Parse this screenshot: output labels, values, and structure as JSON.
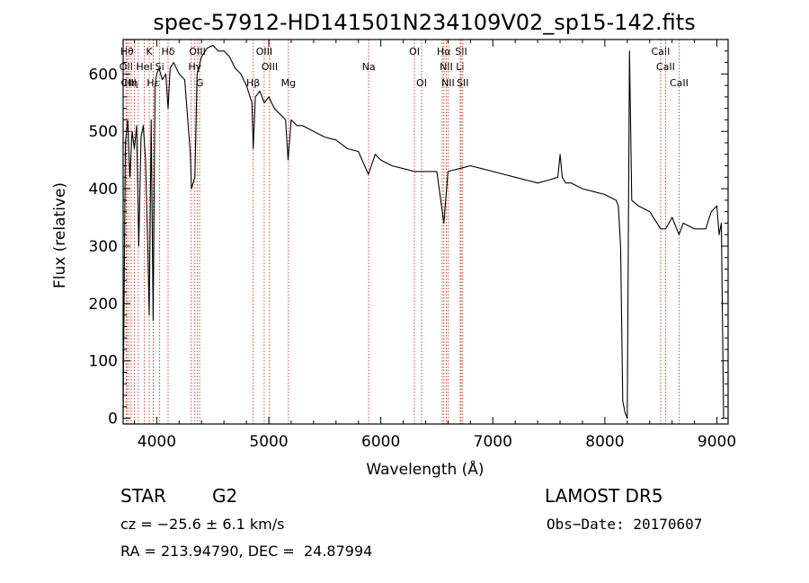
{
  "chart_data": {
    "type": "line",
    "title": "spec-57912-HD141501N234109V02_sp15-142.fits",
    "xlabel": "Wavelength (Å)",
    "ylabel": "Flux (relative)",
    "xlim": [
      3700,
      9100
    ],
    "ylim": [
      -10,
      660
    ],
    "x_ticks": [
      4000,
      5000,
      6000,
      7000,
      8000,
      9000
    ],
    "y_ticks": [
      0,
      100,
      200,
      300,
      400,
      500,
      600
    ],
    "grid": false,
    "series": [
      {
        "x": [
          3700,
          3720,
          3740,
          3760,
          3780,
          3800,
          3820,
          3840,
          3860,
          3880,
          3900,
          3920,
          3933,
          3950,
          3968,
          3985,
          4000,
          4020,
          4050,
          4080,
          4101,
          4120,
          4150,
          4200,
          4250,
          4300,
          4310,
          4340,
          4360,
          4400,
          4450,
          4500,
          4550,
          4600,
          4650,
          4700,
          4750,
          4800,
          4850,
          4861,
          4880,
          4920,
          4960,
          5000,
          5050,
          5100,
          5150,
          5172,
          5200,
          5250,
          5300,
          5400,
          5500,
          5600,
          5700,
          5800,
          5890,
          5950,
          6000,
          6100,
          6200,
          6300,
          6400,
          6500,
          6563,
          6600,
          6700,
          6800,
          6900,
          7000,
          7100,
          7200,
          7300,
          7400,
          7500,
          7580,
          7600,
          7620,
          7650,
          7700,
          7800,
          7900,
          8000,
          8050,
          8100,
          8120,
          8140,
          8160,
          8180,
          8200,
          8220,
          8240,
          8300,
          8400,
          8498,
          8542,
          8600,
          8662,
          8700,
          8800,
          8900,
          8950,
          9000,
          9020,
          9040,
          9060
        ],
        "y": [
          0,
          480,
          520,
          420,
          500,
          470,
          510,
          300,
          490,
          510,
          450,
          300,
          180,
          520,
          170,
          580,
          600,
          610,
          590,
          600,
          540,
          610,
          620,
          600,
          590,
          460,
          400,
          420,
          600,
          630,
          645,
          650,
          640,
          640,
          630,
          610,
          600,
          580,
          550,
          470,
          560,
          570,
          550,
          560,
          540,
          530,
          520,
          450,
          520,
          510,
          510,
          500,
          490,
          485,
          470,
          465,
          425,
          460,
          450,
          440,
          435,
          430,
          430,
          430,
          340,
          430,
          435,
          440,
          435,
          430,
          425,
          420,
          415,
          410,
          415,
          420,
          460,
          420,
          410,
          410,
          400,
          395,
          390,
          385,
          380,
          370,
          300,
          30,
          10,
          0,
          640,
          380,
          370,
          360,
          330,
          330,
          350,
          320,
          340,
          330,
          330,
          360,
          370,
          320,
          340,
          0
        ]
      }
    ],
    "lines": [
      {
        "x": 3734,
        "label": "Hθ",
        "row": 1
      },
      {
        "x": 3727,
        "label": "OII",
        "row": 2
      },
      {
        "x": 3750,
        "label": "CIII",
        "row": 3
      },
      {
        "x": 3771,
        "label": "Hη",
        "row": 3
      },
      {
        "x": 3800,
        "label": "",
        "row": 0
      },
      {
        "x": 3835,
        "label": "",
        "row": 0
      },
      {
        "x": 3889,
        "label": "HeI",
        "row": 2
      },
      {
        "x": 3933,
        "label": "K",
        "row": 1
      },
      {
        "x": 3968,
        "label": "Hε",
        "row": 3
      },
      {
        "x": 3970,
        "label": "",
        "row": 0
      },
      {
        "x": 4026,
        "label": "Si",
        "row": 2
      },
      {
        "x": 4101,
        "label": "Hδ",
        "row": 1
      },
      {
        "x": 4307,
        "label": "",
        "row": 0
      },
      {
        "x": 4340,
        "label": "Hγ",
        "row": 2
      },
      {
        "x": 4363,
        "label": "OIII",
        "row": 1
      },
      {
        "x": 4383,
        "label": "G",
        "row": 3
      },
      {
        "x": 4861,
        "label": "Hβ",
        "row": 3
      },
      {
        "x": 4959,
        "label": "OIII",
        "row": 1
      },
      {
        "x": 5007,
        "label": "OIII",
        "row": 2
      },
      {
        "x": 5175,
        "label": "Mg",
        "row": 3
      },
      {
        "x": 5892,
        "label": "Na",
        "row": 2
      },
      {
        "x": 6300,
        "label": "OI",
        "row": 1
      },
      {
        "x": 6364,
        "label": "OI",
        "row": 3
      },
      {
        "x": 6548,
        "label": "",
        "row": 0
      },
      {
        "x": 6563,
        "label": "Hα",
        "row": 1
      },
      {
        "x": 6584,
        "label": "NII",
        "row": 2
      },
      {
        "x": 6600,
        "label": "NII",
        "row": 3
      },
      {
        "x": 6708,
        "label": "Li",
        "row": 2
      },
      {
        "x": 6717,
        "label": "SII",
        "row": 1
      },
      {
        "x": 6731,
        "label": "SII",
        "row": 3
      },
      {
        "x": 8498,
        "label": "CaII",
        "row": 1
      },
      {
        "x": 8542,
        "label": "CaII",
        "row": 2
      },
      {
        "x": 8662,
        "label": "CaII",
        "row": 3
      }
    ]
  },
  "footer": {
    "object_type": "STAR",
    "subclass": "G2",
    "survey": "LAMOST DR5",
    "cz": "cz = −25.6 ± 6.1 km/s",
    "obs_date": "Obs−Date: 20170607",
    "coords": "RA = 213.94790, DEC =  24.87994"
  }
}
